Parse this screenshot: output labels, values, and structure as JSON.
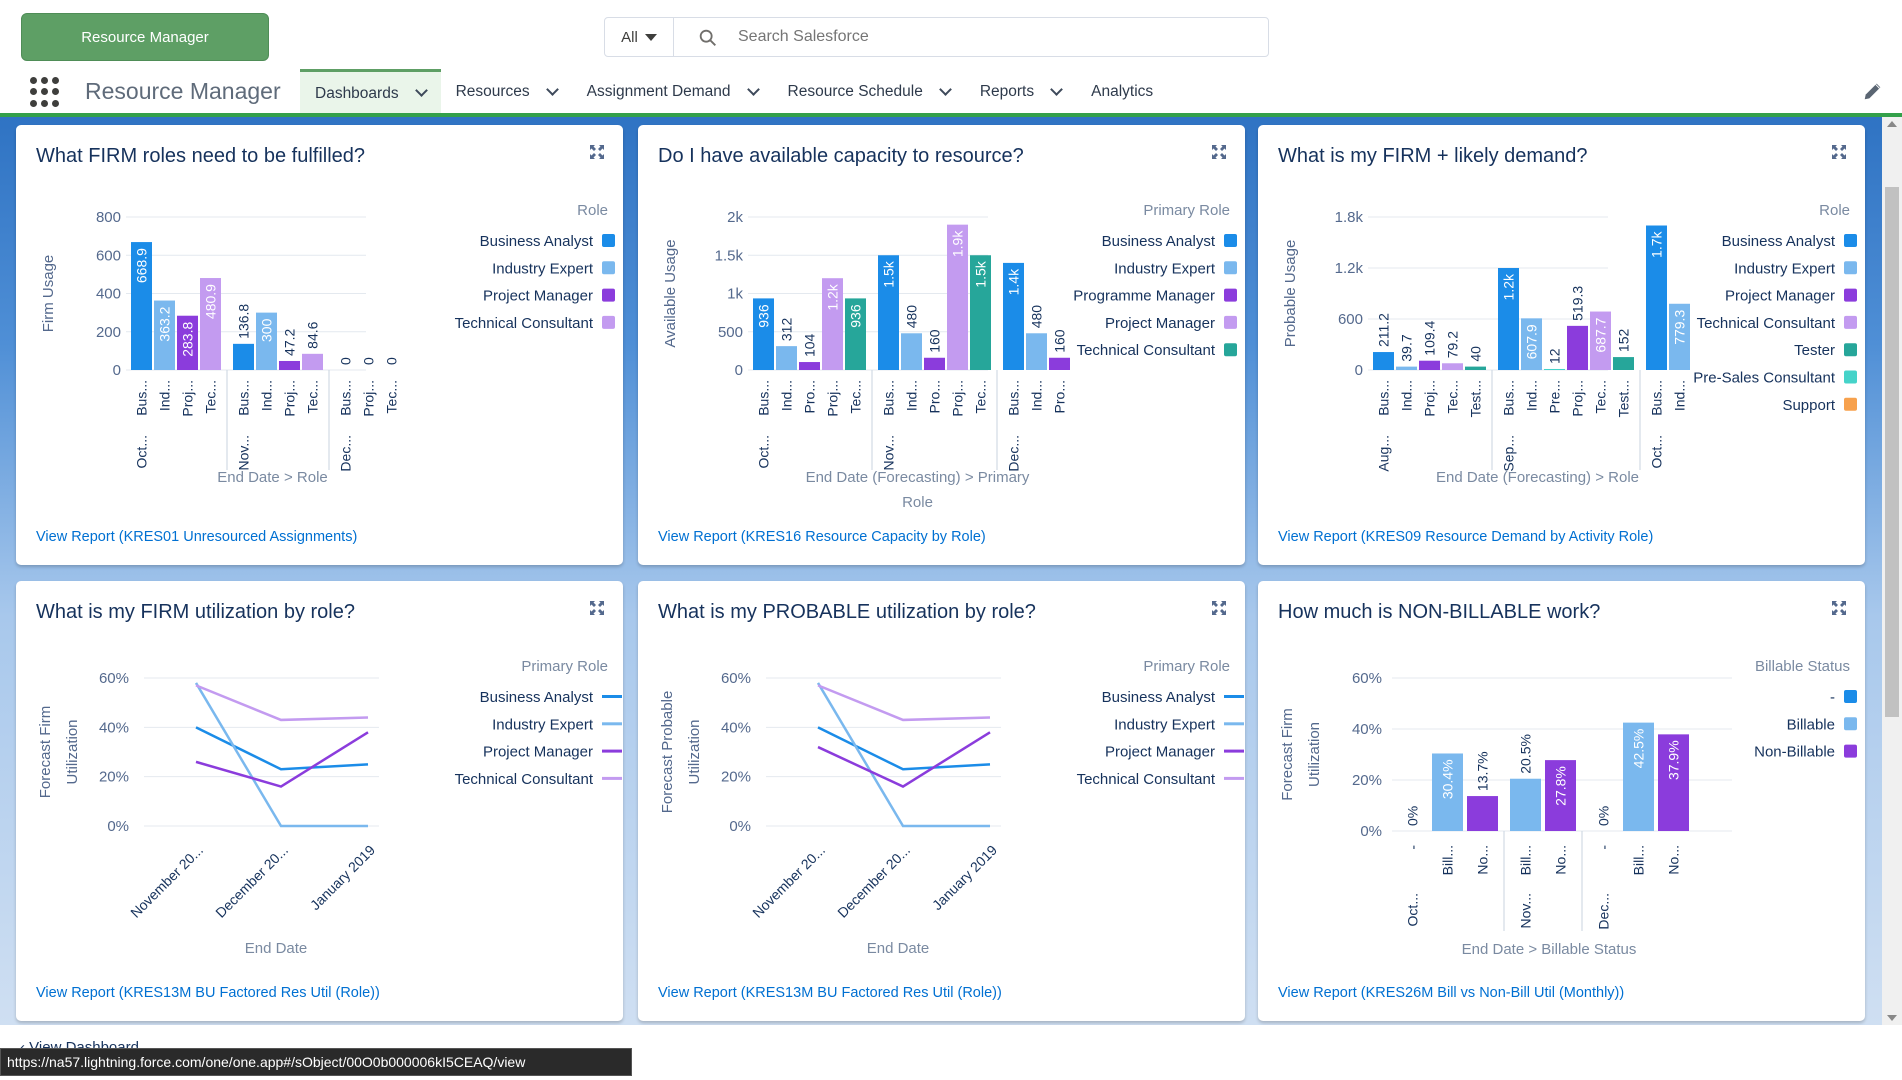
{
  "header": {
    "app_button": "Resource Manager",
    "search_scope": "All",
    "search_placeholder": "Search Salesforce",
    "app_name": "Resource Manager",
    "nav_tabs": [
      {
        "label": "Dashboards",
        "has_menu": true,
        "active": true
      },
      {
        "label": "Resources",
        "has_menu": true
      },
      {
        "label": "Assignment Demand",
        "has_menu": true
      },
      {
        "label": "Resource Schedule",
        "has_menu": true
      },
      {
        "label": "Reports",
        "has_menu": true
      },
      {
        "label": "Analytics",
        "has_menu": false
      }
    ]
  },
  "colors": {
    "business_analyst": "#1b8ce8",
    "industry_expert": "#7ab8ee",
    "project_manager": "#8b3cdc",
    "technical_consultant": "#c39bf0",
    "programme_manager": "#8b3cdc",
    "tester": "#26a69a",
    "pre_sales": "#45d3c9",
    "support": "#f7a14d",
    "accent": "#33a04a",
    "link": "#0070d2"
  },
  "cards": [
    {
      "title": "What FIRM roles need to be fulfilled?",
      "link": "View Report (KRES01 Unresourced Assignments)",
      "chart_data": {
        "type": "bar",
        "ylabel": "Firm Usage",
        "ylim": [
          0,
          800
        ],
        "yticks": [
          "0",
          "200",
          "400",
          "600",
          "800"
        ],
        "xlabel_parts": [
          "End Date",
          ">",
          "Role"
        ],
        "legend_title": "Role",
        "legend": [
          {
            "name": "Business Analyst",
            "color": "#1b8ce8"
          },
          {
            "name": "Industry Expert",
            "color": "#7ab8ee"
          },
          {
            "name": "Project Manager",
            "color": "#8b3cdc"
          },
          {
            "name": "Technical Consultant",
            "color": "#c39bf0"
          }
        ],
        "groups": [
          {
            "label": "Oct...",
            "bars": [
              {
                "label": "Bus...",
                "value": 668.9,
                "text": "668.9",
                "color": "#1b8ce8"
              },
              {
                "label": "Ind...",
                "value": 363.2,
                "text": "363.2",
                "color": "#7ab8ee"
              },
              {
                "label": "Proj...",
                "value": 283.8,
                "text": "283.8",
                "color": "#8b3cdc"
              },
              {
                "label": "Tec...",
                "value": 480.9,
                "text": "480.9",
                "color": "#c39bf0"
              }
            ]
          },
          {
            "label": "Nov...",
            "bars": [
              {
                "label": "Bus...",
                "value": 136.8,
                "text": "136.8",
                "color": "#1b8ce8"
              },
              {
                "label": "Ind...",
                "value": 300,
                "text": "300",
                "color": "#7ab8ee"
              },
              {
                "label": "Proj...",
                "value": 47.2,
                "text": "47.2",
                "color": "#8b3cdc"
              },
              {
                "label": "Tec...",
                "value": 84.6,
                "text": "84.6",
                "color": "#c39bf0"
              }
            ]
          },
          {
            "label": "Dec...",
            "bars": [
              {
                "label": "Bus...",
                "value": 0,
                "text": "0",
                "color": "#1b8ce8"
              },
              {
                "label": "Proj...",
                "value": 0,
                "text": "0",
                "color": "#8b3cdc"
              },
              {
                "label": "Tec...",
                "value": 0,
                "text": "0",
                "color": "#c39bf0"
              }
            ]
          }
        ]
      }
    },
    {
      "title": "Do I have available capacity to resource?",
      "link": "View Report (KRES16 Resource Capacity by Role)",
      "chart_data": {
        "type": "bar",
        "ylabel": "Available Usage",
        "ylim": [
          0,
          2000
        ],
        "yticks": [
          "0",
          "500",
          "1k",
          "1.5k",
          "2k"
        ],
        "xlabel_parts": [
          "End Date (Forecasting)",
          ">",
          "Primary",
          "Role"
        ],
        "legend_title": "Primary Role",
        "legend": [
          {
            "name": "Business Analyst",
            "color": "#1b8ce8"
          },
          {
            "name": "Industry Expert",
            "color": "#7ab8ee"
          },
          {
            "name": "Programme Manager",
            "color": "#8b3cdc"
          },
          {
            "name": "Project Manager",
            "color": "#c39bf0"
          },
          {
            "name": "Technical Consultant",
            "color": "#26a69a"
          }
        ],
        "groups": [
          {
            "label": "Oct...",
            "bars": [
              {
                "label": "Bus...",
                "value": 936,
                "text": "936",
                "color": "#1b8ce8"
              },
              {
                "label": "Ind...",
                "value": 312,
                "text": "312",
                "color": "#7ab8ee"
              },
              {
                "label": "Pro...",
                "value": 104,
                "text": "104",
                "color": "#8b3cdc"
              },
              {
                "label": "Proj...",
                "value": 1200,
                "text": "1.2k",
                "color": "#c39bf0"
              },
              {
                "label": "Tec...",
                "value": 936,
                "text": "936",
                "color": "#26a69a"
              }
            ]
          },
          {
            "label": "Nov...",
            "bars": [
              {
                "label": "Bus...",
                "value": 1500,
                "text": "1.5k",
                "color": "#1b8ce8"
              },
              {
                "label": "Ind...",
                "value": 480,
                "text": "480",
                "color": "#7ab8ee"
              },
              {
                "label": "Pro...",
                "value": 160,
                "text": "160",
                "color": "#8b3cdc"
              },
              {
                "label": "Proj...",
                "value": 1900,
                "text": "1.9k",
                "color": "#c39bf0"
              },
              {
                "label": "Tec...",
                "value": 1500,
                "text": "1.5k",
                "color": "#26a69a"
              }
            ]
          },
          {
            "label": "Dec...",
            "bars": [
              {
                "label": "Bus...",
                "value": 1400,
                "text": "1.4k",
                "color": "#1b8ce8"
              },
              {
                "label": "Ind...",
                "value": 480,
                "text": "480",
                "color": "#7ab8ee"
              },
              {
                "label": "Pro...",
                "value": 160,
                "text": "160",
                "color": "#8b3cdc"
              }
            ]
          }
        ]
      }
    },
    {
      "title": "What is my FIRM + likely demand?",
      "link": "View Report (KRES09 Resource Demand by Activity Role)",
      "chart_data": {
        "type": "bar",
        "ylabel": "Probable Usage",
        "ylim": [
          0,
          1800
        ],
        "yticks": [
          "0",
          "600",
          "1.2k",
          "1.8k"
        ],
        "xlabel_parts": [
          "End Date (Forecasting)",
          ">",
          "Role"
        ],
        "legend_title": "Role",
        "legend": [
          {
            "name": "Business Analyst",
            "color": "#1b8ce8"
          },
          {
            "name": "Industry Expert",
            "color": "#7ab8ee"
          },
          {
            "name": "Project Manager",
            "color": "#8b3cdc"
          },
          {
            "name": "Technical Consultant",
            "color": "#c39bf0"
          },
          {
            "name": "Tester",
            "color": "#26a69a"
          },
          {
            "name": "Pre-Sales Consultant",
            "color": "#45d3c9"
          },
          {
            "name": "Support",
            "color": "#f7a14d"
          }
        ],
        "groups": [
          {
            "label": "Aug...",
            "bars": [
              {
                "label": "Bus...",
                "value": 211.2,
                "text": "211.2",
                "color": "#1b8ce8"
              },
              {
                "label": "Ind...",
                "value": 39.7,
                "text": "39.7",
                "color": "#7ab8ee"
              },
              {
                "label": "Proj...",
                "value": 109.4,
                "text": "109.4",
                "color": "#8b3cdc"
              },
              {
                "label": "Tec...",
                "value": 79.2,
                "text": "79.2",
                "color": "#c39bf0"
              },
              {
                "label": "Test...",
                "value": 40,
                "text": "40",
                "color": "#26a69a"
              }
            ]
          },
          {
            "label": "Sep...",
            "bars": [
              {
                "label": "Bus...",
                "value": 1200,
                "text": "1.2k",
                "color": "#1b8ce8"
              },
              {
                "label": "Ind...",
                "value": 607.9,
                "text": "607.9",
                "color": "#7ab8ee"
              },
              {
                "label": "Pre...",
                "value": 12,
                "text": "12",
                "color": "#45d3c9"
              },
              {
                "label": "Proj...",
                "value": 519.3,
                "text": "519.3",
                "color": "#8b3cdc"
              },
              {
                "label": "Tec...",
                "value": 687.7,
                "text": "687.7",
                "color": "#c39bf0"
              },
              {
                "label": "Test...",
                "value": 152,
                "text": "152",
                "color": "#26a69a"
              }
            ]
          },
          {
            "label": "Oct...",
            "bars": [
              {
                "label": "Bus...",
                "value": 1700,
                "text": "1.7k",
                "color": "#1b8ce8"
              },
              {
                "label": "Ind...",
                "value": 779.3,
                "text": "779.3",
                "color": "#7ab8ee"
              }
            ]
          }
        ]
      }
    },
    {
      "title": "What is my FIRM utilization by role?",
      "link": "View Report (KRES13M BU Factored Res Util (Role))",
      "chart_data": {
        "type": "line",
        "ylabel": [
          "Forecast Firm",
          "Utilization"
        ],
        "ylim": [
          0,
          60
        ],
        "yticks": [
          "0%",
          "20%",
          "40%",
          "60%"
        ],
        "x": [
          "November 20...",
          "December 20...",
          "January 2019"
        ],
        "xlabel": "End Date",
        "legend_title": "Primary Role",
        "series": [
          {
            "name": "Business Analyst",
            "color": "#1b8ce8",
            "values": [
              40,
              23,
              25
            ]
          },
          {
            "name": "Industry Expert",
            "color": "#7ab8ee",
            "values": [
              58,
              0,
              0
            ]
          },
          {
            "name": "Project Manager",
            "color": "#8b3cdc",
            "values": [
              26,
              16,
              38
            ]
          },
          {
            "name": "Technical Consultant",
            "color": "#c39bf0",
            "values": [
              57,
              43,
              44
            ]
          }
        ]
      }
    },
    {
      "title": "What is my PROBABLE utilization by role?",
      "link": "View Report (KRES13M BU Factored Res Util (Role))",
      "chart_data": {
        "type": "line",
        "ylabel": [
          "Forecast Probable",
          "Utilization"
        ],
        "ylim": [
          0,
          60
        ],
        "yticks": [
          "0%",
          "20%",
          "40%",
          "60%"
        ],
        "x": [
          "November 20...",
          "December 20...",
          "January 2019"
        ],
        "xlabel": "End Date",
        "legend_title": "Primary Role",
        "series": [
          {
            "name": "Business Analyst",
            "color": "#1b8ce8",
            "values": [
              40,
              23,
              25
            ]
          },
          {
            "name": "Industry Expert",
            "color": "#7ab8ee",
            "values": [
              58,
              0,
              0
            ]
          },
          {
            "name": "Project Manager",
            "color": "#8b3cdc",
            "values": [
              32,
              16,
              38
            ]
          },
          {
            "name": "Technical Consultant",
            "color": "#c39bf0",
            "values": [
              57,
              43,
              44
            ]
          }
        ]
      }
    },
    {
      "title": "How much is NON-BILLABLE work?",
      "link": "View Report (KRES26M Bill vs Non-Bill Util (Monthly))",
      "chart_data": {
        "type": "bar",
        "ylabel": [
          "Forecast Firm",
          "Utilization"
        ],
        "ylim": [
          0,
          60
        ],
        "yticks": [
          "0%",
          "20%",
          "40%",
          "60%"
        ],
        "xlabel_parts": [
          "End Date",
          ">",
          "Billable Status"
        ],
        "legend_title": "Billable Status",
        "legend": [
          {
            "name": "-",
            "color": "#1b8ce8"
          },
          {
            "name": "Billable",
            "color": "#7ab8ee"
          },
          {
            "name": "Non-Billable",
            "color": "#8b3cdc"
          }
        ],
        "groups": [
          {
            "label": "Oct...",
            "bars": [
              {
                "label": "-",
                "value": 0,
                "text": "0%",
                "color": "#1b8ce8"
              },
              {
                "label": "Bill...",
                "value": 30.4,
                "text": "30.4%",
                "color": "#7ab8ee"
              },
              {
                "label": "No...",
                "value": 13.7,
                "text": "13.7%",
                "color": "#8b3cdc"
              }
            ]
          },
          {
            "label": "Nov...",
            "bars": [
              {
                "label": "Bill...",
                "value": 20.5,
                "text": "20.5%",
                "color": "#7ab8ee"
              },
              {
                "label": "No...",
                "value": 27.8,
                "text": "27.8%",
                "color": "#8b3cdc"
              }
            ]
          },
          {
            "label": "Dec...",
            "bars": [
              {
                "label": "-",
                "value": 0,
                "text": "0%",
                "color": "#1b8ce8"
              },
              {
                "label": "Bill...",
                "value": 42.5,
                "text": "42.5%",
                "color": "#7ab8ee"
              },
              {
                "label": "No...",
                "value": 37.9,
                "text": "37.9%",
                "color": "#8b3cdc"
              }
            ]
          }
        ]
      }
    }
  ],
  "footer": {
    "back_text": "‹  View Dashboard"
  },
  "status_url": "https://na57.lightning.force.com/one/one.app#/sObject/00O0b000006kI5CEAQ/view"
}
